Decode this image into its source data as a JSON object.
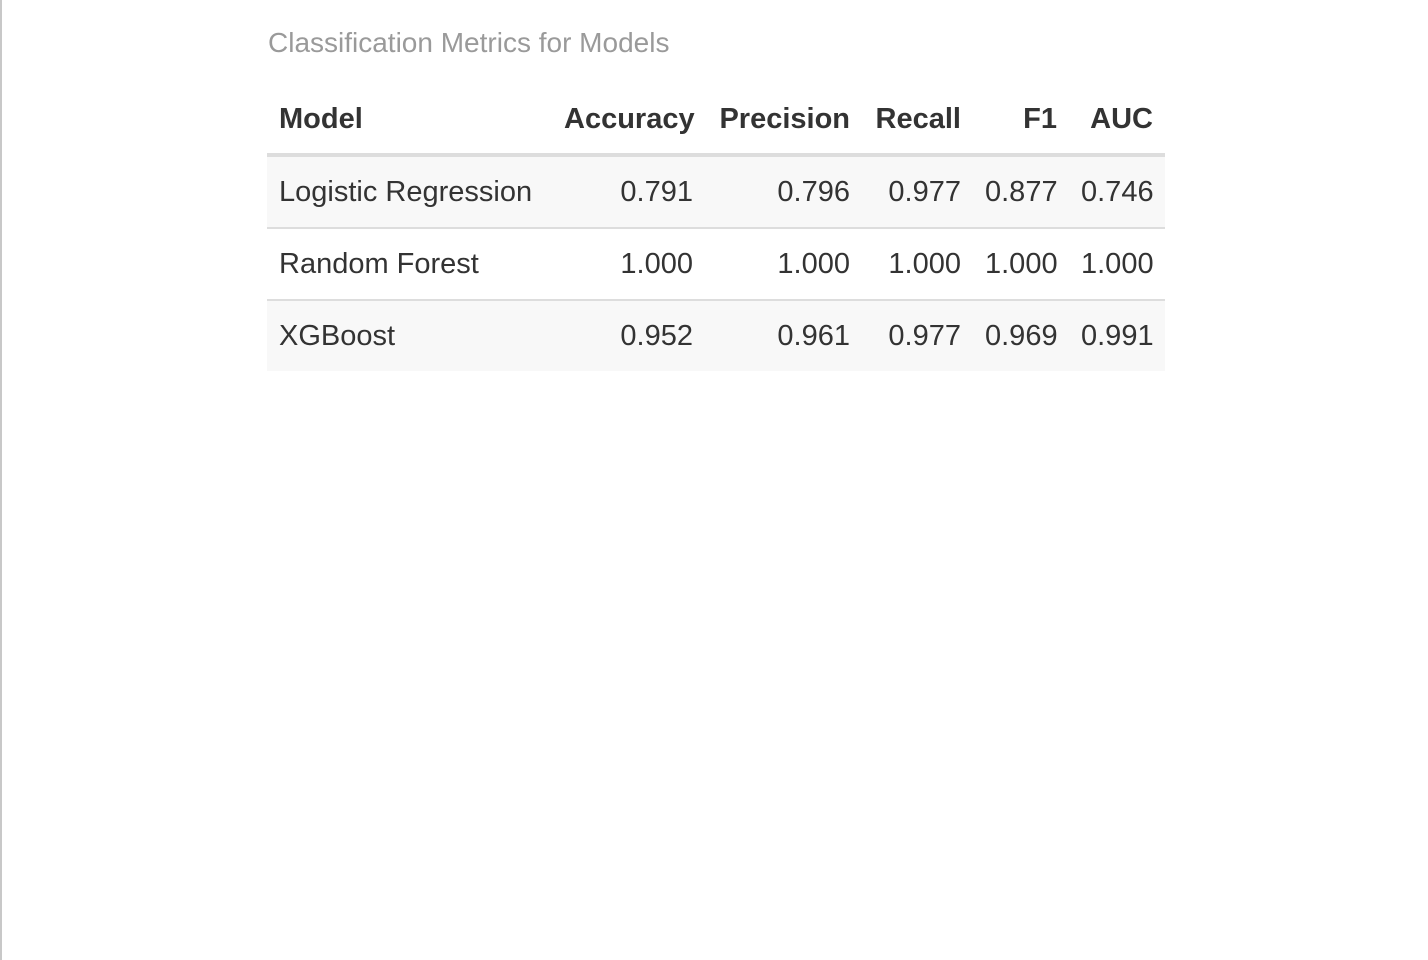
{
  "caption": "Classification Metrics for Models",
  "table": {
    "headers": [
      "Model",
      "Accuracy",
      "Precision",
      "Recall",
      "F1",
      "AUC"
    ],
    "rows": [
      [
        "Logistic Regression",
        "0.791",
        "0.796",
        "0.977",
        "0.877",
        "0.746"
      ],
      [
        "Random Forest",
        "1.000",
        "1.000",
        "1.000",
        "1.000",
        "1.000"
      ],
      [
        "XGBoost",
        "0.952",
        "0.961",
        "0.977",
        "0.969",
        "0.991"
      ]
    ]
  },
  "colors": {
    "caption": "#9a9a9a",
    "text": "#333333",
    "stripe": "#f8f8f8",
    "border": "#dddddd"
  }
}
